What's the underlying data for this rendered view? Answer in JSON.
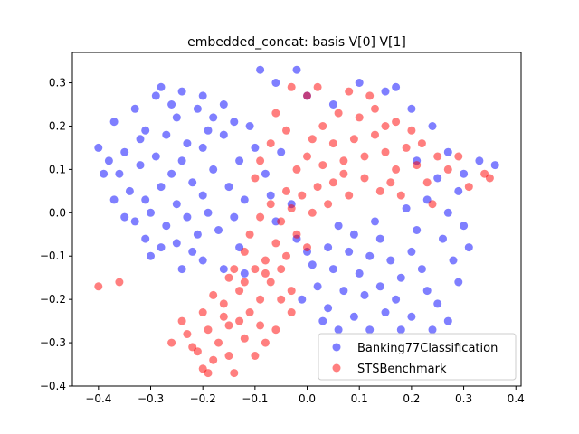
{
  "chart_data": {
    "type": "scatter",
    "title": "embedded_concat: basis V[0] V[1]",
    "xlabel": "",
    "ylabel": "",
    "xlim": [
      -0.45,
      0.41
    ],
    "ylim": [
      -0.4,
      0.37
    ],
    "xticks": [
      -0.4,
      -0.3,
      -0.2,
      -0.1,
      0.0,
      0.1,
      0.2,
      0.3,
      0.4
    ],
    "yticks": [
      -0.4,
      -0.3,
      -0.2,
      -0.1,
      0.0,
      0.1,
      0.2,
      0.3
    ],
    "xtick_labels": [
      "−0.4",
      "−0.3",
      "−0.2",
      "−0.1",
      "0.0",
      "0.1",
      "0.2",
      "0.3",
      "0.4"
    ],
    "ytick_labels": [
      "−0.4",
      "−0.3",
      "−0.2",
      "−0.1",
      "0.0",
      "0.1",
      "0.2",
      "0.3"
    ],
    "grid": false,
    "legend_position": "lower right",
    "series": [
      {
        "name": "Banking77Classification",
        "color": "#0000ff",
        "opacity": 0.5,
        "points": [
          [
            -0.37,
            0.21
          ],
          [
            -0.33,
            0.24
          ],
          [
            -0.31,
            0.19
          ],
          [
            -0.29,
            0.27
          ],
          [
            -0.27,
            0.18
          ],
          [
            -0.25,
            0.22
          ],
          [
            -0.23,
            0.16
          ],
          [
            -0.21,
            0.24
          ],
          [
            -0.35,
            0.14
          ],
          [
            -0.32,
            0.11
          ],
          [
            -0.29,
            0.13
          ],
          [
            -0.26,
            0.09
          ],
          [
            -0.24,
            0.12
          ],
          [
            -0.22,
            0.07
          ],
          [
            -0.2,
            0.15
          ],
          [
            -0.38,
            0.12
          ],
          [
            -0.36,
            0.09
          ],
          [
            -0.34,
            0.05
          ],
          [
            -0.31,
            0.03
          ],
          [
            -0.28,
            0.06
          ],
          [
            -0.25,
            0.02
          ],
          [
            -0.23,
            -0.01
          ],
          [
            -0.2,
            0.04
          ],
          [
            -0.18,
            0.1
          ],
          [
            -0.16,
            0.18
          ],
          [
            -0.15,
            0.06
          ],
          [
            -0.13,
            0.12
          ],
          [
            -0.11,
            0.2
          ],
          [
            -0.1,
            0.15
          ],
          [
            -0.12,
            0.03
          ],
          [
            -0.14,
            -0.01
          ],
          [
            -0.17,
            -0.04
          ],
          [
            -0.19,
            0.0
          ],
          [
            -0.21,
            -0.05
          ],
          [
            -0.27,
            -0.03
          ],
          [
            -0.3,
            0.0
          ],
          [
            -0.33,
            -0.02
          ],
          [
            -0.4,
            0.15
          ],
          [
            -0.39,
            0.09
          ],
          [
            -0.28,
            0.29
          ],
          [
            -0.26,
            0.25
          ],
          [
            -0.24,
            0.28
          ],
          [
            -0.2,
            0.27
          ],
          [
            -0.18,
            0.22
          ],
          [
            -0.16,
            0.25
          ],
          [
            -0.14,
            0.21
          ],
          [
            -0.31,
            -0.06
          ],
          [
            -0.25,
            -0.07
          ],
          [
            -0.22,
            -0.09
          ],
          [
            -0.3,
            -0.1
          ],
          [
            -0.24,
            -0.13
          ],
          [
            -0.2,
            -0.11
          ],
          [
            -0.07,
            0.04
          ],
          [
            -0.06,
            -0.02
          ],
          [
            -0.08,
            0.09
          ],
          [
            -0.05,
            0.14
          ],
          [
            -0.03,
            0.02
          ],
          [
            -0.02,
            -0.06
          ],
          [
            0.0,
            0.27
          ],
          [
            -0.06,
            0.3
          ],
          [
            -0.09,
            0.33
          ],
          [
            -0.02,
            0.33
          ],
          [
            0.05,
            0.25
          ],
          [
            0.1,
            0.3
          ],
          [
            0.17,
            0.29
          ],
          [
            0.2,
            0.24
          ],
          [
            0.24,
            0.2
          ],
          [
            0.27,
            0.14
          ],
          [
            0.3,
            0.09
          ],
          [
            0.33,
            0.12
          ],
          [
            0.36,
            0.11
          ],
          [
            0.29,
            0.05
          ],
          [
            0.27,
            0.0
          ],
          [
            0.3,
            -0.03
          ],
          [
            0.26,
            -0.06
          ],
          [
            0.28,
            -0.11
          ],
          [
            0.29,
            -0.16
          ],
          [
            0.25,
            -0.21
          ],
          [
            0.27,
            -0.25
          ],
          [
            0.24,
            -0.27
          ],
          [
            0.2,
            -0.24
          ],
          [
            0.18,
            -0.27
          ],
          [
            0.15,
            -0.23
          ],
          [
            0.12,
            -0.27
          ],
          [
            0.09,
            -0.24
          ],
          [
            0.06,
            -0.27
          ],
          [
            0.04,
            -0.22
          ],
          [
            0.02,
            -0.17
          ],
          [
            0.05,
            -0.13
          ],
          [
            0.08,
            -0.09
          ],
          [
            0.1,
            -0.14
          ],
          [
            0.12,
            -0.1
          ],
          [
            0.14,
            -0.06
          ],
          [
            0.16,
            -0.11
          ],
          [
            0.18,
            -0.15
          ],
          [
            0.2,
            -0.09
          ],
          [
            0.22,
            -0.13
          ],
          [
            0.21,
            -0.04
          ],
          [
            0.23,
            -0.18
          ],
          [
            0.17,
            -0.2
          ],
          [
            0.14,
            -0.17
          ],
          [
            0.11,
            -0.19
          ],
          [
            0.07,
            -0.18
          ],
          [
            0.04,
            -0.08
          ],
          [
            0.06,
            -0.03
          ],
          [
            0.01,
            -0.12
          ],
          [
            -0.01,
            -0.2
          ],
          [
            0.03,
            -0.25
          ],
          [
            0.13,
            -0.02
          ],
          [
            0.19,
            0.01
          ],
          [
            0.09,
            -0.05
          ],
          [
            0.0,
            -0.09
          ],
          [
            0.25,
            0.08
          ],
          [
            0.23,
            0.03
          ],
          [
            0.21,
            0.12
          ],
          [
            -0.13,
            -0.08
          ],
          [
            -0.16,
            -0.13
          ],
          [
            -0.12,
            -0.14
          ],
          [
            -0.28,
            -0.08
          ],
          [
            -0.35,
            -0.01
          ],
          [
            -0.37,
            0.03
          ],
          [
            -0.32,
            0.17
          ],
          [
            -0.19,
            0.19
          ],
          [
            0.15,
            0.28
          ],
          [
            0.31,
            -0.08
          ]
        ]
      },
      {
        "name": "STSBenchmark",
        "color": "#ff0000",
        "opacity": 0.5,
        "points": [
          [
            -0.4,
            -0.17
          ],
          [
            -0.36,
            -0.16
          ],
          [
            -0.24,
            -0.25
          ],
          [
            -0.22,
            -0.31
          ],
          [
            -0.2,
            -0.36
          ],
          [
            -0.19,
            -0.37
          ],
          [
            -0.14,
            -0.37
          ],
          [
            -0.17,
            -0.3
          ],
          [
            -0.15,
            -0.26
          ],
          [
            -0.12,
            -0.29
          ],
          [
            -0.1,
            -0.33
          ],
          [
            -0.08,
            -0.3
          ],
          [
            -0.06,
            -0.27
          ],
          [
            -0.2,
            -0.23
          ],
          [
            -0.18,
            -0.19
          ],
          [
            -0.16,
            -0.21
          ],
          [
            -0.13,
            -0.18
          ],
          [
            -0.11,
            -0.23
          ],
          [
            -0.09,
            -0.2
          ],
          [
            -0.07,
            -0.16
          ],
          [
            -0.05,
            -0.2
          ],
          [
            -0.03,
            -0.23
          ],
          [
            -0.14,
            -0.13
          ],
          [
            -0.12,
            -0.09
          ],
          [
            -0.1,
            -0.13
          ],
          [
            -0.08,
            -0.11
          ],
          [
            -0.06,
            -0.07
          ],
          [
            -0.04,
            -0.1
          ],
          [
            -0.02,
            -0.05
          ],
          [
            0.0,
            -0.08
          ],
          [
            -0.11,
            -0.05
          ],
          [
            -0.09,
            -0.01
          ],
          [
            -0.07,
            0.02
          ],
          [
            -0.05,
            -0.02
          ],
          [
            -0.03,
            0.01
          ],
          [
            -0.01,
            0.04
          ],
          [
            0.01,
            0.0
          ],
          [
            0.02,
            0.06
          ],
          [
            -0.02,
            0.1
          ],
          [
            0.0,
            0.13
          ],
          [
            0.03,
            0.11
          ],
          [
            0.05,
            0.16
          ],
          [
            0.07,
            0.12
          ],
          [
            0.09,
            0.17
          ],
          [
            0.11,
            0.13
          ],
          [
            0.13,
            0.18
          ],
          [
            0.15,
            0.14
          ],
          [
            0.17,
            0.1
          ],
          [
            0.19,
            0.15
          ],
          [
            0.21,
            0.11
          ],
          [
            0.23,
            0.07
          ],
          [
            0.25,
            0.13
          ],
          [
            0.27,
            0.1
          ],
          [
            0.05,
            0.07
          ],
          [
            0.08,
            0.04
          ],
          [
            0.11,
            0.08
          ],
          [
            0.14,
            0.05
          ],
          [
            0.03,
            0.2
          ],
          [
            0.06,
            0.23
          ],
          [
            0.1,
            0.22
          ],
          [
            0.13,
            0.24
          ],
          [
            0.17,
            0.21
          ],
          [
            0.2,
            0.19
          ],
          [
            -0.04,
            0.19
          ],
          [
            -0.07,
            0.16
          ],
          [
            -0.09,
            0.12
          ],
          [
            -0.06,
            0.23
          ],
          [
            0.0,
            0.27
          ],
          [
            0.02,
            0.29
          ],
          [
            -0.03,
            0.29
          ],
          [
            0.08,
            0.28
          ],
          [
            0.12,
            0.27
          ],
          [
            0.34,
            0.09
          ],
          [
            0.35,
            0.08
          ],
          [
            0.31,
            0.06
          ],
          [
            0.29,
            0.13
          ],
          [
            -0.21,
            -0.32
          ],
          [
            -0.18,
            -0.34
          ],
          [
            -0.15,
            -0.33
          ],
          [
            -0.23,
            -0.28
          ],
          [
            -0.26,
            -0.3
          ],
          [
            -0.19,
            -0.27
          ],
          [
            -0.16,
            -0.24
          ],
          [
            -0.13,
            -0.25
          ],
          [
            -0.09,
            -0.26
          ],
          [
            -0.12,
            -0.16
          ],
          [
            -0.15,
            -0.15
          ],
          [
            -0.08,
            -0.14
          ],
          [
            -0.05,
            -0.13
          ],
          [
            -0.03,
            -0.18
          ],
          [
            0.04,
            0.02
          ],
          [
            0.07,
            0.09
          ],
          [
            0.16,
            0.07
          ],
          [
            0.22,
            0.16
          ],
          [
            0.24,
            0.02
          ],
          [
            -0.1,
            0.08
          ],
          [
            -0.04,
            0.05
          ],
          [
            0.01,
            0.17
          ],
          [
            0.15,
            0.2
          ],
          [
            0.18,
            0.04
          ]
        ]
      }
    ]
  }
}
